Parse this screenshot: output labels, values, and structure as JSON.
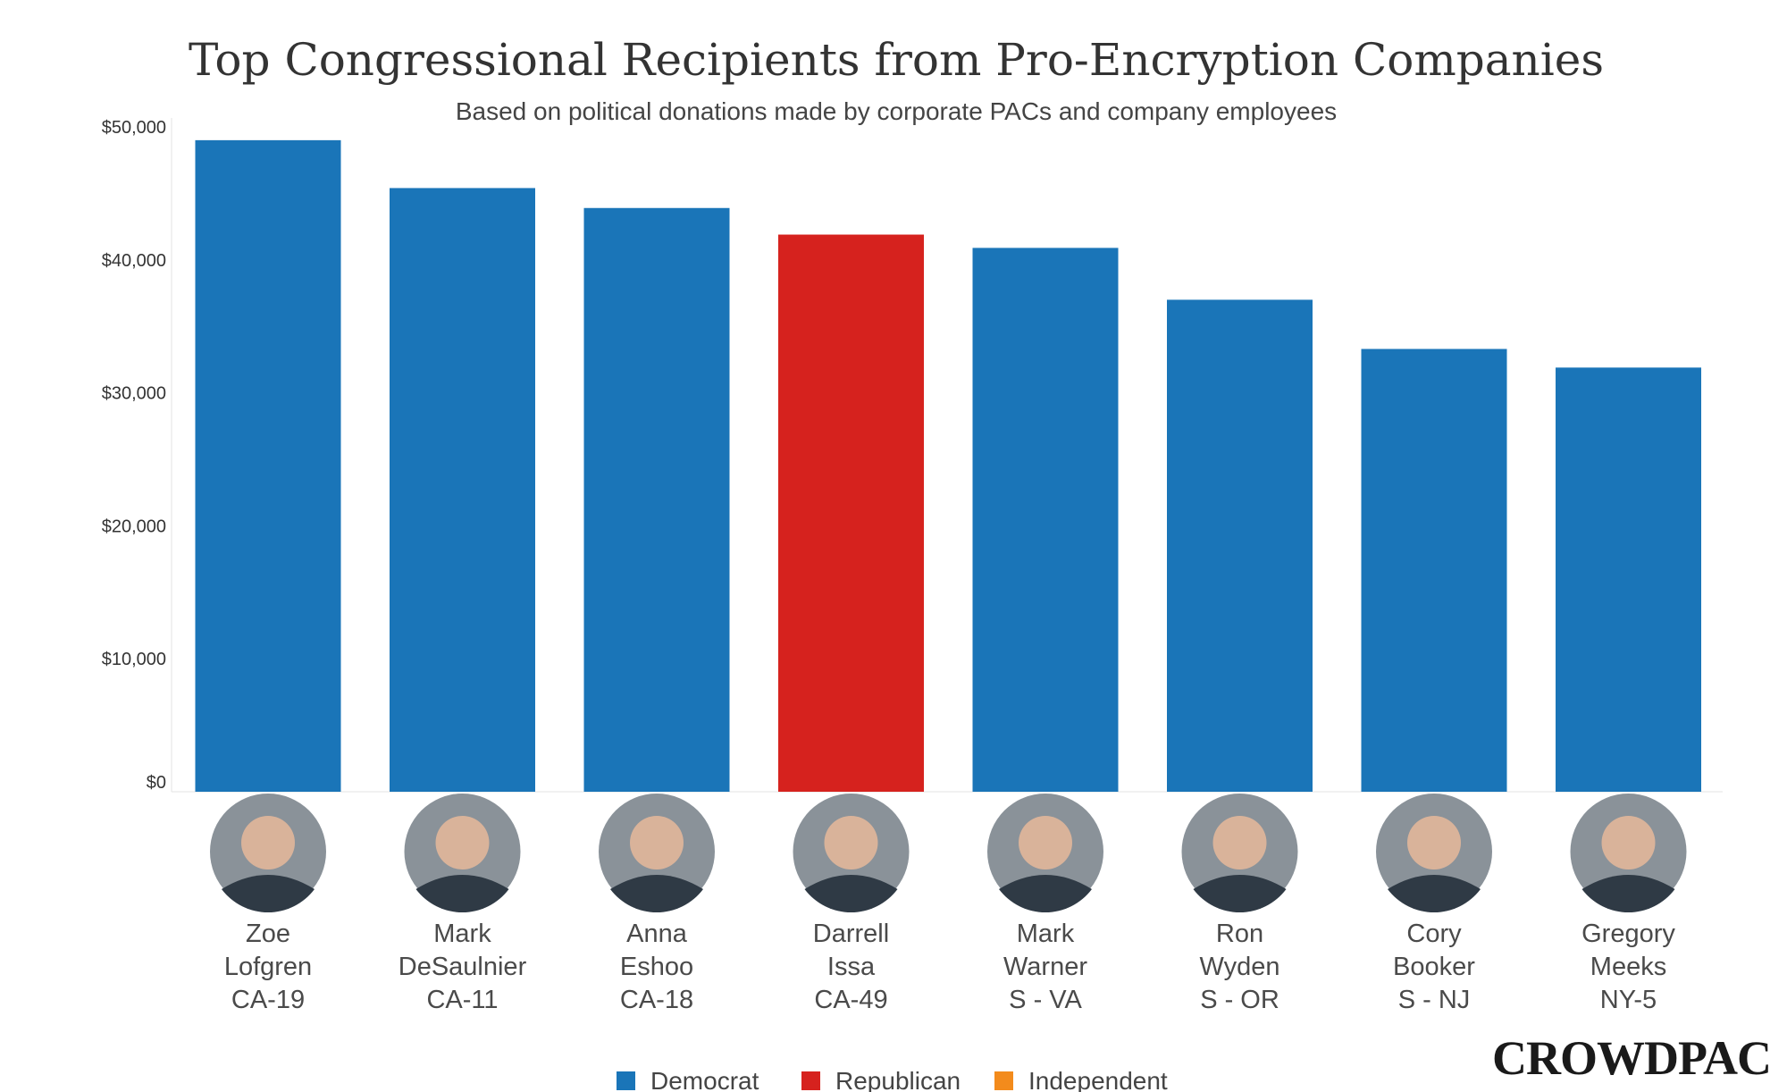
{
  "chart_data": {
    "type": "bar",
    "title": "Top Congressional Recipients from Pro-Encryption Companies",
    "subtitle": "Based on political donations made by corporate PACs and company employees",
    "ylim": [
      0,
      50000
    ],
    "yticks": [
      {
        "value": 0,
        "label": "$0"
      },
      {
        "value": 10000,
        "label": "$10,000"
      },
      {
        "value": 20000,
        "label": "$20,000"
      },
      {
        "value": 30000,
        "label": "$30,000"
      },
      {
        "value": 40000,
        "label": "$40,000"
      },
      {
        "value": 50000,
        "label": "$50,000"
      }
    ],
    "grid": false,
    "legend_position": "bottom",
    "legend": [
      {
        "label": "Democrat",
        "party": "D"
      },
      {
        "label": "Republican",
        "party": "R"
      },
      {
        "label": "Independent",
        "party": "I"
      }
    ],
    "colors": {
      "D": "#1a75b8",
      "R": "#d6221e",
      "I": "#f38b1c"
    },
    "bars": [
      {
        "first": "Zoe",
        "last": "Lofgren",
        "district": "CA-19",
        "party": "D",
        "value": 49000
      },
      {
        "first": "Mark",
        "last": "DeSaulnier",
        "district": "CA-11",
        "party": "D",
        "value": 45400
      },
      {
        "first": "Anna",
        "last": "Eshoo",
        "district": "CA-18",
        "party": "D",
        "value": 43900
      },
      {
        "first": "Darrell",
        "last": "Issa",
        "district": "CA-49",
        "party": "R",
        "value": 41900
      },
      {
        "first": "Mark",
        "last": "Warner",
        "district": "S - VA",
        "party": "D",
        "value": 40900
      },
      {
        "first": "Ron",
        "last": "Wyden",
        "district": "S - OR",
        "party": "D",
        "value": 37000
      },
      {
        "first": "Cory",
        "last": "Booker",
        "district": "S - NJ",
        "party": "D",
        "value": 33300
      },
      {
        "first": "Gregory",
        "last": "Meeks",
        "district": "NY-5",
        "party": "D",
        "value": 31900
      }
    ]
  },
  "logo": {
    "text": "CROWDPAC"
  }
}
